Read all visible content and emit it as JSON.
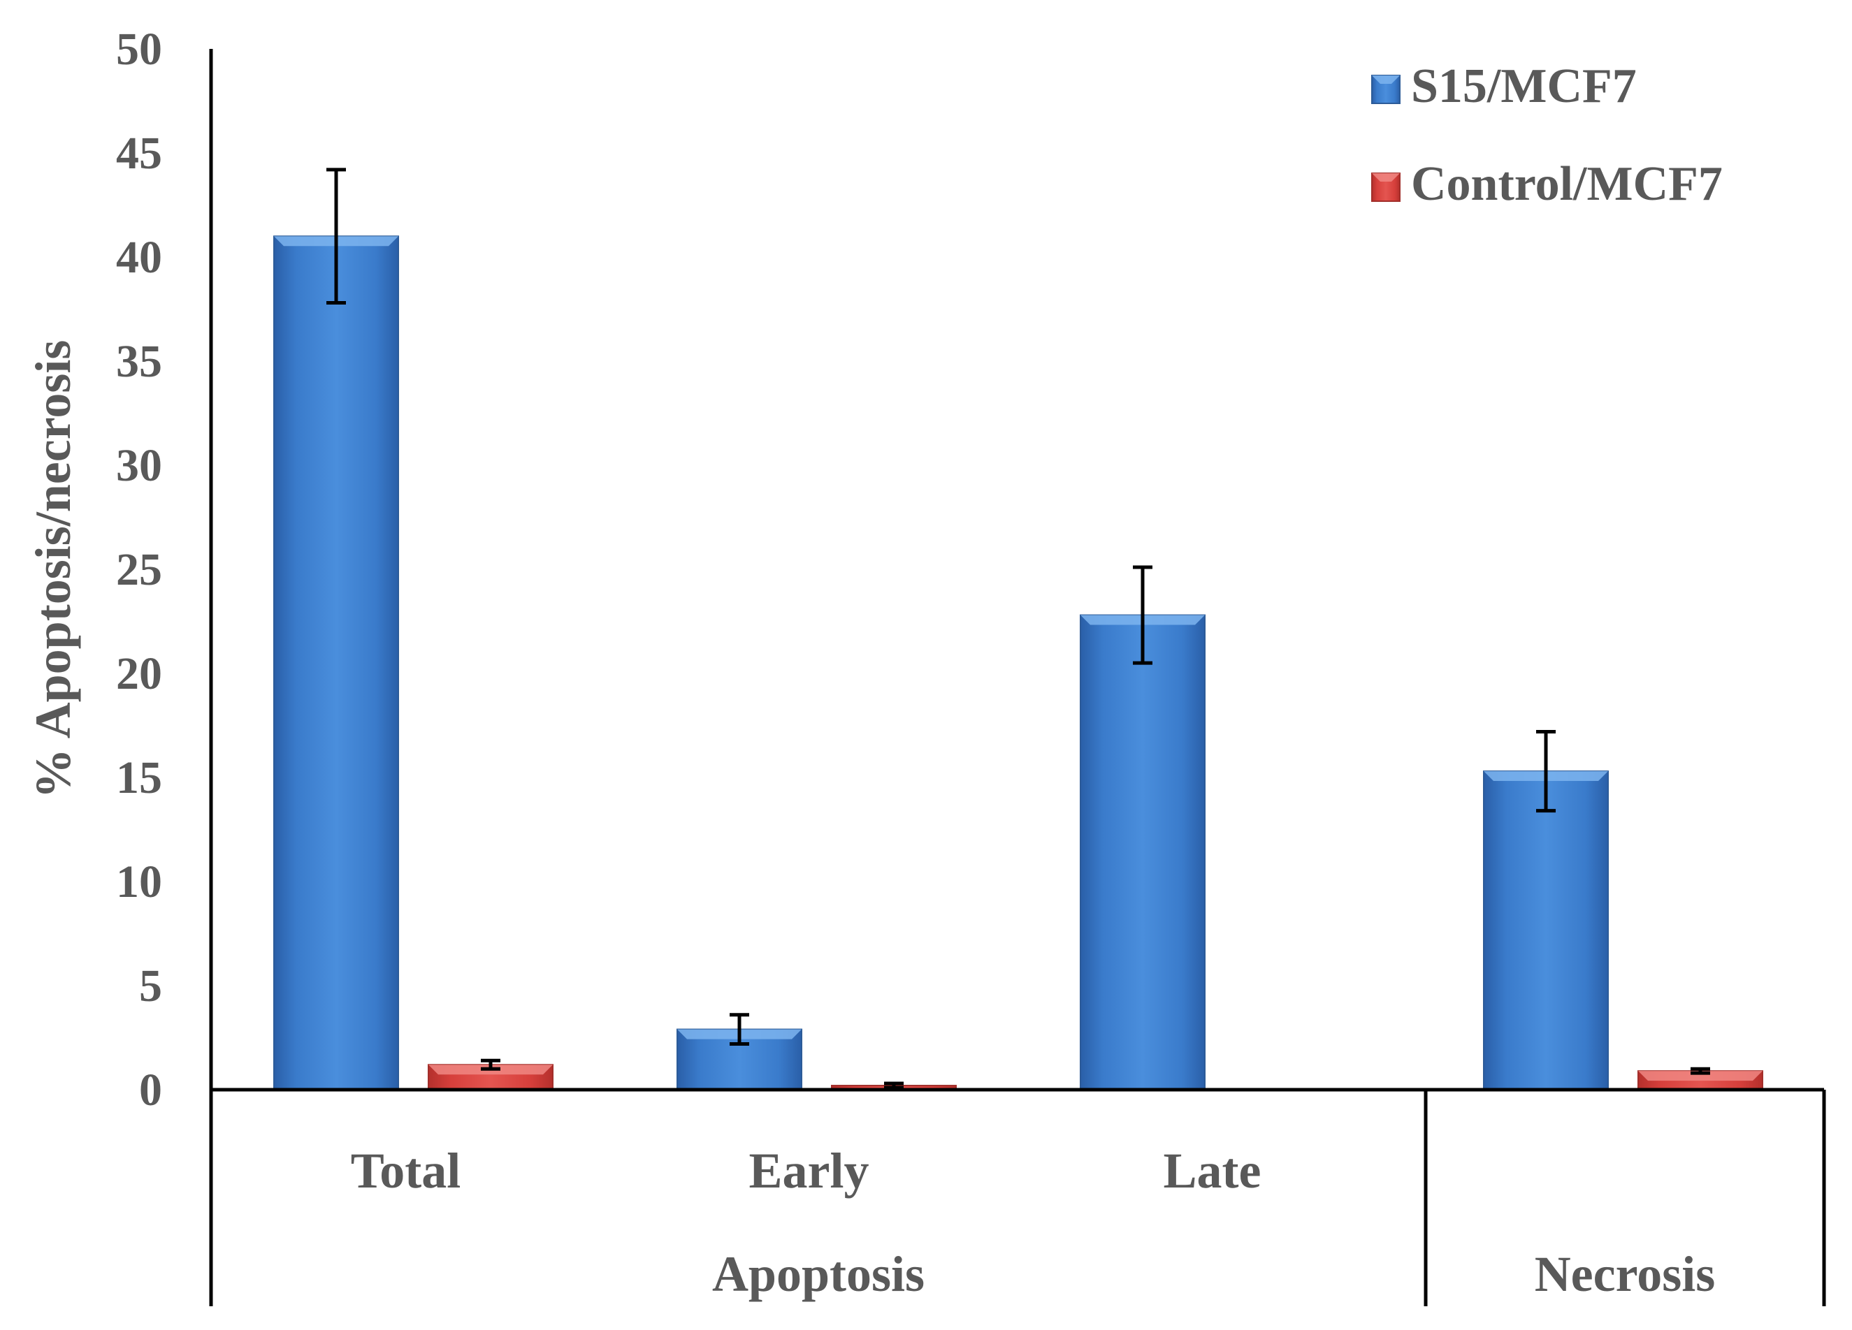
{
  "chart_data": {
    "type": "bar",
    "title": "",
    "ylabel": "% Apoptosis/necrosis",
    "xlabel": "",
    "ylim": [
      0,
      50
    ],
    "yticks": [
      0,
      5,
      10,
      15,
      20,
      25,
      30,
      35,
      40,
      45,
      50
    ],
    "grid": false,
    "legend_position": "top-right",
    "categories": [
      "Total",
      "Early",
      "Late",
      ""
    ],
    "groups": [
      {
        "label": "Apoptosis",
        "span": [
          0,
          2
        ]
      },
      {
        "label": "Necrosis",
        "span": [
          3,
          3
        ]
      }
    ],
    "series": [
      {
        "name": "S15/MCF7",
        "color": "#3A7BC8",
        "values": [
          41.0,
          2.9,
          22.8,
          15.3
        ],
        "errors": [
          3.2,
          0.7,
          2.3,
          1.9
        ]
      },
      {
        "name": "Control/MCF7",
        "color": "#D9413D",
        "values": [
          1.2,
          0.2,
          0.0,
          0.9
        ],
        "errors": [
          0.2,
          0.1,
          0.0,
          0.1
        ]
      }
    ]
  }
}
